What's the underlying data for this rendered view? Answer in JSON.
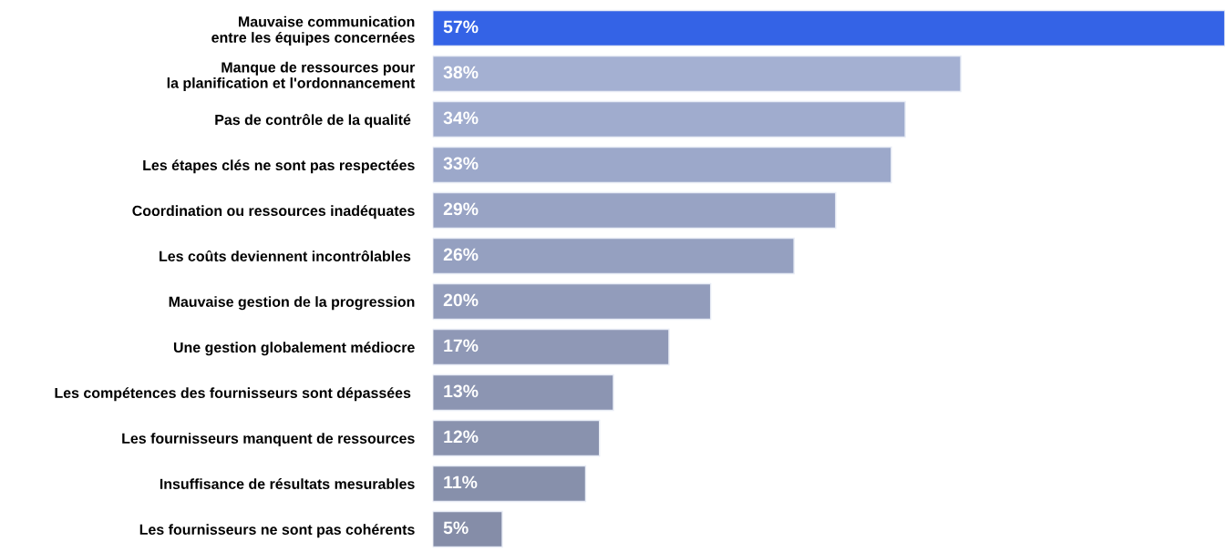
{
  "chart_data": {
    "type": "bar",
    "orientation": "horizontal",
    "categories": [
      "Mauvaise communication\nentre les équipes concernées",
      "Manque de ressources pour\nla planification et l'ordonnancement",
      "Pas de contrôle de la qualité ",
      "Les étapes clés ne sont pas respectées",
      "Coordination ou ressources inadéquates",
      "Les coûts deviennent incontrôlables ",
      "Mauvaise gestion de la progression",
      "Une gestion globalement médiocre",
      "Les compétences des fournisseurs sont dépassées ",
      "Les fournisseurs manquent de ressources",
      "Insuffisance de résultats mesurables",
      "Les fournisseurs ne sont pas cohérents"
    ],
    "values": [
      57,
      38,
      34,
      33,
      29,
      26,
      20,
      17,
      13,
      12,
      11,
      5
    ],
    "value_labels": [
      "57%",
      "38%",
      "34%",
      "33%",
      "29%",
      "26%",
      "20%",
      "17%",
      "13%",
      "12%",
      "11%",
      "5%"
    ],
    "colors": [
      "#3463e6",
      "#a4b0d2",
      "#a0acce",
      "#9ca8ca",
      "#98a3c4",
      "#95a0c0",
      "#929cbb",
      "#8f98b6",
      "#8c95b2",
      "#8992ae",
      "#8790ab",
      "#858da8"
    ],
    "xlim": [
      0,
      57
    ],
    "tick_labels": "y",
    "grid": false,
    "legend": false
  }
}
